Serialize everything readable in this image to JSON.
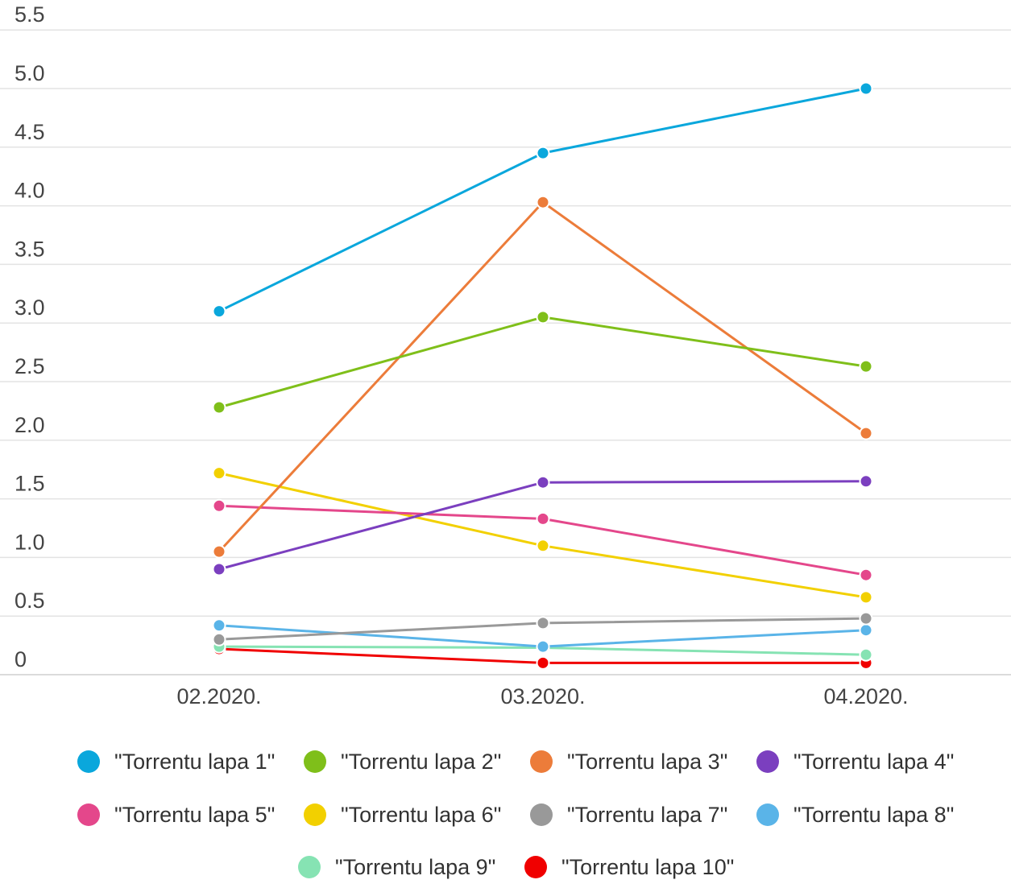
{
  "chart_data": {
    "type": "line",
    "title": "",
    "xlabel": "",
    "ylabel": "",
    "categories": [
      "02.2020.",
      "03.2020.",
      "04.2020."
    ],
    "y_ticks": [
      "0",
      "0.5",
      "1.0",
      "1.5",
      "2.0",
      "2.5",
      "3.0",
      "3.5",
      "4.0",
      "4.5",
      "5.0",
      "5.5"
    ],
    "ylim": [
      0,
      5.5
    ],
    "grid": true,
    "legend_position": "bottom",
    "series": [
      {
        "name": "\"Torrentu lapa 1\"",
        "color": "#0aa7dc",
        "values": [
          3.1,
          4.45,
          5.0
        ]
      },
      {
        "name": "\"Torrentu lapa 2\"",
        "color": "#7fbf1a",
        "values": [
          2.28,
          3.05,
          2.63
        ]
      },
      {
        "name": "\"Torrentu lapa 3\"",
        "color": "#ec7c3a",
        "values": [
          1.05,
          4.03,
          2.06
        ]
      },
      {
        "name": "\"Torrentu lapa 4\"",
        "color": "#7b3fbf",
        "values": [
          0.9,
          1.64,
          1.65
        ]
      },
      {
        "name": "\"Torrentu lapa 5\"",
        "color": "#e4478b",
        "values": [
          1.44,
          1.33,
          0.85
        ]
      },
      {
        "name": "\"Torrentu lapa 6\"",
        "color": "#f2d000",
        "values": [
          1.72,
          1.1,
          0.66
        ]
      },
      {
        "name": "\"Torrentu lapa 7\"",
        "color": "#999999",
        "values": [
          0.3,
          0.44,
          0.48
        ]
      },
      {
        "name": "\"Torrentu lapa 8\"",
        "color": "#5ab4e8",
        "values": [
          0.42,
          0.24,
          0.38
        ]
      },
      {
        "name": "\"Torrentu lapa 9\"",
        "color": "#86e3b3",
        "values": [
          0.24,
          0.23,
          0.17
        ]
      },
      {
        "name": "\"Torrentu lapa 10\"",
        "color": "#f00000",
        "values": [
          0.22,
          0.1,
          0.1
        ]
      }
    ]
  }
}
